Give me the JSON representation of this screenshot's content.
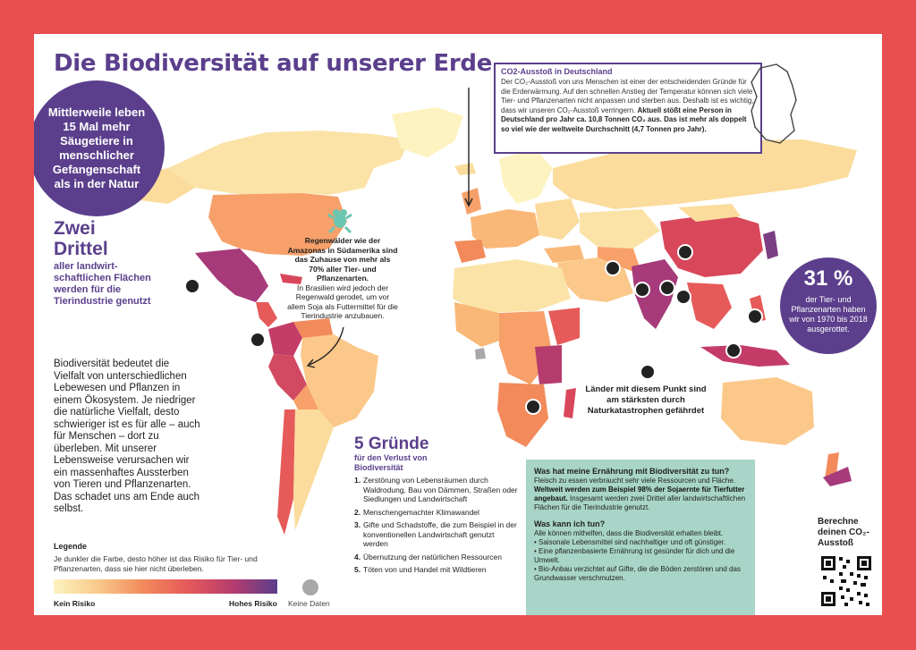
{
  "title": "Die Biodiversität auf unserer Erde",
  "circle_left": "Mittlerweile leben 15 Mal mehr Säugetiere in menschlicher Gefangenschaft als in der Natur",
  "zwei_drittel": {
    "big": "Zwei Drittel",
    "small": "aller landwirt-schaftlichen Flächen werden für die Tierindustrie genutzt"
  },
  "biodiversity_text": "Biodiversität bedeutet die Vielfalt von unterschiedlichen Lebewesen und Pflanzen in einem Ökosystem. Je niedriger die natürliche Vielfalt, desto schwieriger ist es für alle – auch für Menschen – dort zu überleben. Mit unserer Lebensweise verursachen wir ein massenhaftes Aussterben von Tieren und Pflanzenarten. Das schadet uns am Ende auch selbst.",
  "co2_box": {
    "title": "CO2-Ausstoß in Deutschland",
    "text": "Der CO₂-Ausstoß von uns Menschen ist einer der entscheidenden Gründe für die Erderwärmung. Auf den schnellen Anstieg der Temperatur können sich viele Tier- und Pflanzenarten nicht anpassen und sterben aus. Deshalb ist es wichtig, dass wir unseren CO₂-Ausstoß verringern.",
    "text_bold": "Aktuell stößt eine Person in Deutschland pro Jahr ca. 10,8 Tonnen CO₂ aus. Das ist mehr als doppelt so viel wie der weltweite Durchschnitt (4,7 Tonnen pro Jahr)."
  },
  "forest_note": {
    "bold": "Regenwälder wie der Amazonas in Südamerika sind das Zuhause von mehr als 70% aller Tier- und Pflanzenarten.",
    "normal": "In Brasilien wird jedoch der Regenwald gerodet, um vor allem Soja als Futtermittel für die Tierindustrie anzubauen."
  },
  "dot_note": "Länder mit diesem Punkt sind am stärksten durch Naturkatastrophen gefährdet",
  "circle_right": {
    "pct": "31 %",
    "text": "der Tier- und Pflanzenarten haben wir von 1970 bis 2018 ausgerottet."
  },
  "grunde": {
    "title": "5 Gründe",
    "subtitle": "für den Verlust von Biodiversität",
    "items": [
      {
        "num": "1.",
        "text": "Zerstörung von Lebensräumen durch Waldrodung, Bau von Dämmen, Straßen oder Siedlungen und Landwirtschaft"
      },
      {
        "num": "2.",
        "text": "Menschengemachter Klimawandel"
      },
      {
        "num": "3.",
        "text": "Gifte und Schadstoffe, die zum Beispiel in der konventionellen Landwirtschaft genutzt werden"
      },
      {
        "num": "4.",
        "text": "Übernutzung der natürlichen Ressourcen"
      },
      {
        "num": "5.",
        "text": "Töten von und Handel mit Wildtieren"
      }
    ]
  },
  "legend": {
    "title": "Legende",
    "desc": "Je dunkler die Farbe, desto höher ist das Risiko für Tier- und Pflanzenarten, dass sie hier nicht überleben.",
    "low": "Kein Risiko",
    "high": "Hohes Risiko",
    "nodata": "Keine Daten",
    "colors": [
      "#fdf3c0",
      "#f9c98a",
      "#f28a5b",
      "#e65a5a",
      "#b63c6e",
      "#5b3f8c"
    ],
    "nodata_color": "#a8a8a8"
  },
  "green_box": {
    "q1": "Was hat meine Ernährung mit Biodiversität zu tun?",
    "p1": "Fleisch zu essen verbraucht sehr viele Ressourcen und Fläche.",
    "p1_bold": "Weltweit werden zum Beispiel 98% der Sojaernte für Tierfutter angebaut.",
    "p1_rest": "Insgesamt werden zwei Drittel aller landwirtschaftlichen Flächen für die Tierindustrie genutzt.",
    "q2": "Was kann ich tun?",
    "p2": "Alle können mithelfen, dass die Biodiversität erhalten bleibt.",
    "bullets": [
      "• Saisonale Lebensmittel sind nachhaltiger und oft günstiger.",
      "• Eine pflanzenbasierte Ernährung ist gesünder für dich und die Umwelt.",
      "• Bio-Anbau verzichtet auf Gifte, die die Böden zerstören und das Grundwasser verschmutzen."
    ]
  },
  "qr_title": "Berechne deinen CO₂-Ausstoß"
}
